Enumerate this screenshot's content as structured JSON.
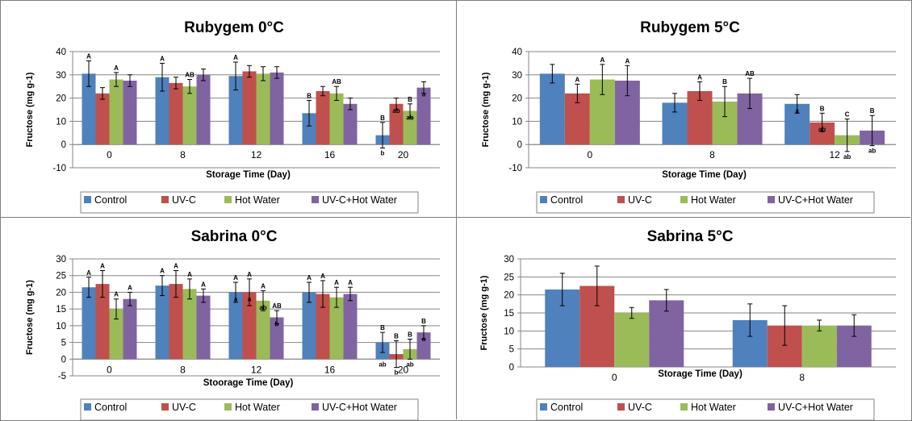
{
  "chart_data": [
    {
      "type": "bar",
      "title": "Rubygem 0°C",
      "xlabel": "Storage Time (Day)",
      "ylabel": "Fructose (mg g-1)",
      "ylim": [
        -10,
        40
      ],
      "yticks": [
        -10,
        0,
        10,
        20,
        30,
        40
      ],
      "grid": true,
      "legend": "bottom",
      "categories": [
        "0",
        "8",
        "12",
        "16",
        "20"
      ],
      "series": [
        {
          "name": "Control",
          "color": "#4F81BD",
          "values": [
            30.5,
            29,
            29.5,
            13.5,
            4
          ],
          "errors": [
            5.5,
            6,
            6,
            5.5,
            5.5
          ],
          "upper_labels": [
            "A",
            "A",
            "A",
            "B",
            "B"
          ],
          "lower_labels": [
            "",
            "",
            "",
            "",
            "b"
          ]
        },
        {
          "name": "UV-C",
          "color": "#C0504D",
          "values": [
            22,
            26.5,
            31.5,
            23,
            17.5
          ],
          "errors": [
            2.5,
            2.5,
            2.5,
            2,
            2.5
          ],
          "upper_labels": [
            "",
            "",
            "",
            "",
            ""
          ],
          "lower_labels": [
            "",
            "",
            "",
            "",
            "ab"
          ]
        },
        {
          "name": "Hot Water",
          "color": "#9BBB59",
          "values": [
            28,
            25,
            30.5,
            22,
            14.5
          ],
          "errors": [
            3,
            3,
            3,
            3,
            3
          ],
          "upper_labels": [
            "A",
            "AB",
            "",
            "AB",
            "B"
          ],
          "lower_labels": [
            "",
            "",
            "",
            "",
            "ab"
          ]
        },
        {
          "name": "UV-C+Hot Water",
          "color": "#8064A2",
          "values": [
            27.5,
            30,
            31,
            17.5,
            24.5
          ],
          "errors": [
            2.5,
            2.5,
            2.5,
            2.5,
            2.5
          ],
          "upper_labels": [
            "",
            "",
            "",
            "",
            ""
          ],
          "lower_labels": [
            "",
            "",
            "",
            "",
            "a"
          ]
        }
      ]
    },
    {
      "type": "bar",
      "title": "Rubygem 5°C",
      "xlabel": "Storage Time (Day)",
      "ylabel": "Fructose (mg g-1)",
      "ylim": [
        -10,
        40
      ],
      "yticks": [
        -10,
        0,
        10,
        20,
        30,
        40
      ],
      "grid": true,
      "legend": "bottom",
      "categories": [
        "0",
        "8",
        "12"
      ],
      "series": [
        {
          "name": "Control",
          "color": "#4F81BD",
          "values": [
            30.5,
            18,
            17.5
          ],
          "errors": [
            4,
            4,
            4
          ],
          "upper_labels": [
            "",
            "",
            ""
          ],
          "lower_labels": [
            "",
            "",
            "a"
          ]
        },
        {
          "name": "UV-C",
          "color": "#C0504D",
          "values": [
            22,
            23,
            9.5
          ],
          "errors": [
            4,
            4,
            4
          ],
          "upper_labels": [
            "A",
            "A",
            "B"
          ],
          "lower_labels": [
            "",
            "",
            "ab"
          ]
        },
        {
          "name": "Hot Water",
          "color": "#9BBB59",
          "values": [
            28,
            18.5,
            4
          ],
          "errors": [
            6.5,
            6.5,
            7
          ],
          "upper_labels": [
            "A",
            "B",
            "C"
          ],
          "lower_labels": [
            "",
            "",
            "ab"
          ]
        },
        {
          "name": "UV-C+Hot Water",
          "color": "#8064A2",
          "values": [
            27.5,
            22,
            6
          ],
          "errors": [
            6.5,
            6.5,
            6.5
          ],
          "upper_labels": [
            "A",
            "AB",
            "B"
          ],
          "lower_labels": [
            "",
            "",
            "ab"
          ]
        }
      ]
    },
    {
      "type": "bar",
      "title": "Sabrina 0°C",
      "xlabel": "Stoorage Time (Day)",
      "ylabel": "Fructose (mg g-1)",
      "ylim": [
        -5,
        30
      ],
      "yticks": [
        -5,
        0,
        5,
        10,
        15,
        20,
        25,
        30
      ],
      "grid": true,
      "legend": "bottom",
      "categories": [
        "0",
        "8",
        "12",
        "16",
        "20"
      ],
      "series": [
        {
          "name": "Control",
          "color": "#4F81BD",
          "values": [
            21.5,
            22,
            20,
            20,
            5
          ],
          "errors": [
            3,
            3,
            3,
            3,
            3
          ],
          "upper_labels": [
            "A",
            "A",
            "A",
            "A",
            "B"
          ],
          "lower_labels": [
            "",
            "",
            "a",
            "",
            "ab"
          ]
        },
        {
          "name": "UV-C",
          "color": "#C0504D",
          "values": [
            22.5,
            22.5,
            20,
            19.5,
            1.5
          ],
          "errors": [
            4,
            4,
            4,
            4,
            4
          ],
          "upper_labels": [
            "A",
            "A",
            "A",
            "A",
            "B"
          ],
          "lower_labels": [
            "",
            "",
            "a",
            "",
            "b"
          ]
        },
        {
          "name": "Hot Water",
          "color": "#9BBB59",
          "values": [
            15,
            21,
            17.5,
            18.5,
            3
          ],
          "errors": [
            3,
            3,
            3,
            3,
            3
          ],
          "upper_labels": [
            "A",
            "A",
            "A",
            "A",
            "B"
          ],
          "lower_labels": [
            "",
            "",
            "ab",
            "",
            "ab"
          ]
        },
        {
          "name": "UV-C+Hot Water",
          "color": "#8064A2",
          "values": [
            18,
            19,
            12.5,
            19.5,
            8
          ],
          "errors": [
            2,
            2,
            2,
            2,
            2
          ],
          "upper_labels": [
            "A",
            "A",
            "AB",
            "A",
            "B"
          ],
          "lower_labels": [
            "",
            "",
            "b",
            "",
            "a"
          ]
        }
      ]
    },
    {
      "type": "bar",
      "title": "Sabrina 5°C",
      "xlabel": "Storage Time (Day)",
      "ylabel": "Fructose (mg g-1)",
      "ylim": [
        0,
        30
      ],
      "yticks": [
        0,
        5,
        10,
        15,
        20,
        25,
        30
      ],
      "grid": true,
      "legend": "bottom",
      "categories": [
        "0",
        "8"
      ],
      "series": [
        {
          "name": "Control",
          "color": "#4F81BD",
          "values": [
            21.5,
            13
          ],
          "errors": [
            4.5,
            4.5
          ],
          "upper_labels": [
            "",
            ""
          ],
          "lower_labels": [
            "",
            ""
          ]
        },
        {
          "name": "UV-C",
          "color": "#C0504D",
          "values": [
            22.5,
            11.5
          ],
          "errors": [
            5.5,
            5.5
          ],
          "upper_labels": [
            "",
            ""
          ],
          "lower_labels": [
            "",
            ""
          ]
        },
        {
          "name": "Hot Water",
          "color": "#9BBB59",
          "values": [
            15,
            11.5
          ],
          "errors": [
            1.5,
            1.5
          ],
          "upper_labels": [
            "",
            ""
          ],
          "lower_labels": [
            "",
            ""
          ]
        },
        {
          "name": "UV-C+Hot Water",
          "color": "#8064A2",
          "values": [
            18.5,
            11.5
          ],
          "errors": [
            3,
            3
          ],
          "upper_labels": [
            "",
            ""
          ],
          "lower_labels": [
            "",
            ""
          ]
        }
      ]
    }
  ]
}
